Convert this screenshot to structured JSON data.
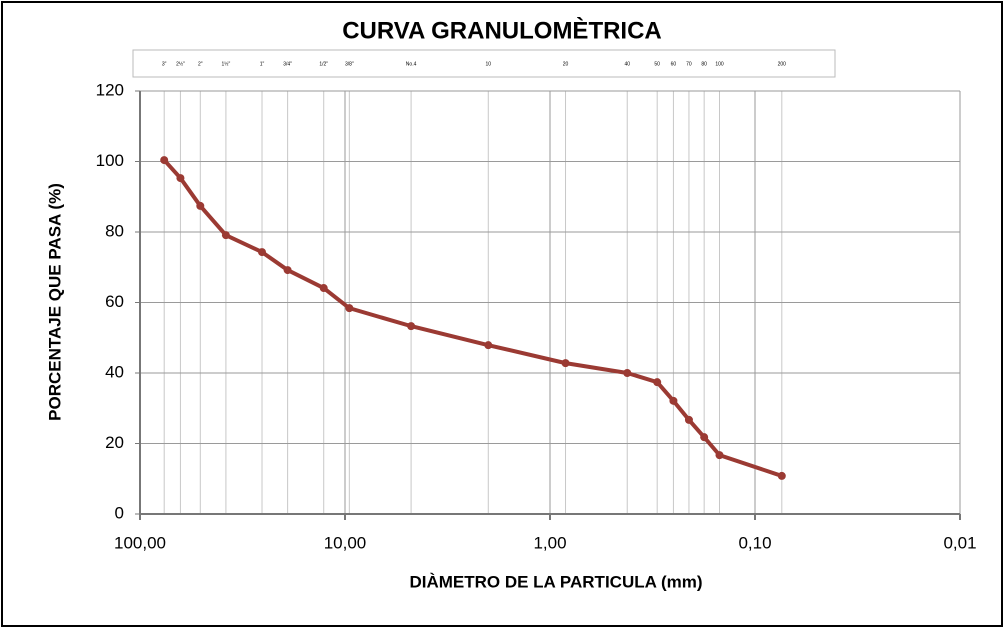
{
  "chart_data": {
    "type": "line",
    "title": "CURVA GRANULOMÈTRICA",
    "xlabel": "DIÀMETRO DE LA PARTICULA (mm)",
    "ylabel": "PORCENTAJE QUE PASA (%)",
    "x": [
      76.2,
      63.5,
      50.8,
      38.1,
      25.4,
      19.05,
      12.7,
      9.525,
      4.76,
      2.0,
      0.84,
      0.42,
      0.3,
      0.25,
      0.21,
      0.177,
      0.149,
      0.074
    ],
    "series": [
      {
        "color": "#9b3a33",
        "values": [
          100.4,
          95.3,
          87.4,
          79.1,
          74.3,
          69.2,
          64.1,
          58.4,
          53.3,
          47.9,
          42.8,
          40.0,
          37.4,
          32.1,
          26.7,
          21.8,
          16.7,
          10.8
        ]
      }
    ],
    "xscale": "log",
    "xlim": [
      100,
      0.01
    ],
    "xticks": [
      {
        "value": 100,
        "label": "100,00"
      },
      {
        "value": 10,
        "label": "10,00"
      },
      {
        "value": 1,
        "label": "1,00"
      },
      {
        "value": 0.1,
        "label": "0,10"
      },
      {
        "value": 0.01,
        "label": "0,01"
      }
    ],
    "ylim": [
      0,
      120
    ],
    "yticks": [
      0,
      20,
      40,
      60,
      80,
      100,
      120
    ],
    "sieves": [
      {
        "value": 76.2,
        "label": "3\""
      },
      {
        "value": 63.5,
        "label": "2½\""
      },
      {
        "value": 50.8,
        "label": "2\""
      },
      {
        "value": 38.1,
        "label": "1½\""
      },
      {
        "value": 25.4,
        "label": "1\""
      },
      {
        "value": 19.05,
        "label": "3/4\""
      },
      {
        "value": 12.7,
        "label": "1/2\""
      },
      {
        "value": 9.525,
        "label": "3/8\""
      },
      {
        "value": 4.76,
        "label": "No.4"
      },
      {
        "value": 2.0,
        "label": "10"
      },
      {
        "value": 0.84,
        "label": "20"
      },
      {
        "value": 0.42,
        "label": "40"
      },
      {
        "value": 0.3,
        "label": "50"
      },
      {
        "value": 0.25,
        "label": "60"
      },
      {
        "value": 0.21,
        "label": "70"
      },
      {
        "value": 0.177,
        "label": "80"
      },
      {
        "value": 0.149,
        "label": "100"
      },
      {
        "value": 0.074,
        "label": "200"
      }
    ],
    "grid": true
  }
}
